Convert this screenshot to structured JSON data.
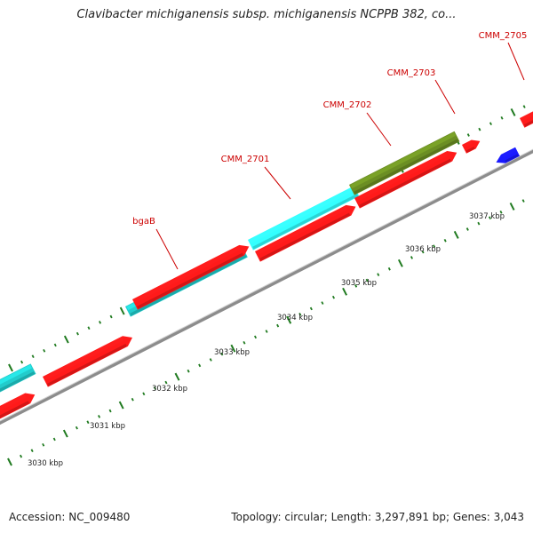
{
  "title": "Clavibacter michiganensis subsp. michiganensis NCPPB 382, co...",
  "footer": {
    "accession": "Accession: NC_009480",
    "summary": "Topology: circular; Length: 3,297,891 bp; Genes: 3,043"
  },
  "scale_labels": [
    "3030 kbp",
    "3031 kbp",
    "3032 kbp",
    "3033 kbp",
    "3034 kbp",
    "3035 kbp",
    "3036 kbp",
    "3037 kbp"
  ],
  "gene_labels": [
    {
      "name": "bgaB",
      "color": "#cc0000"
    },
    {
      "name": "CMM_2701",
      "color": "#cc0000"
    },
    {
      "name": "CMM_2702",
      "color": "#cc0000"
    },
    {
      "name": "CMM_2703",
      "color": "#cc0000"
    },
    {
      "name": "CMM_2705",
      "color": "#cc0000"
    }
  ],
  "colors": {
    "cds": "#ff1a1a",
    "cyan_feature": "#22cccc",
    "bright_cyan_feature": "#33ffff",
    "olive_feature": "#6b8e23",
    "reverse_feature": "#1a1aff",
    "backbone": "#8c8c8c",
    "ticks": "#1f7a1f"
  }
}
